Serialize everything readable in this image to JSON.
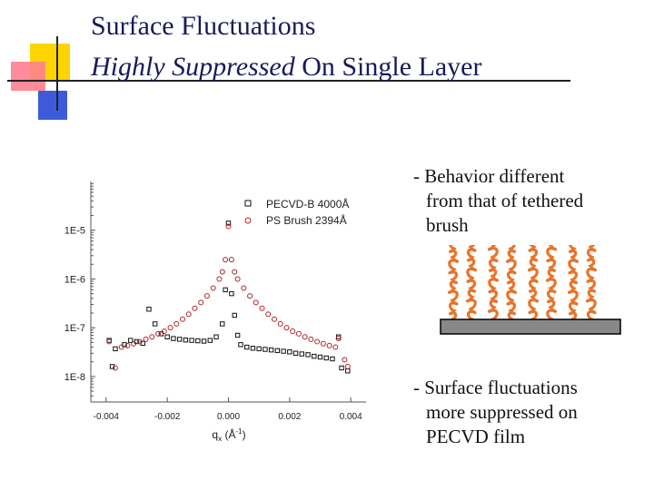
{
  "title": {
    "line1": "Surface Fluctuations",
    "line2_emphasis": "Highly Suppressed",
    "line2_rest": " On Single Layer"
  },
  "bullets": {
    "b1": [
      "- Behavior different",
      "from that of tethered",
      "brush"
    ],
    "b2": [
      "- Surface fluctuations",
      "more suppressed on",
      "PECVD film"
    ]
  },
  "colors": {
    "title": "#1a1a5c",
    "series_pecvd": "#111111",
    "series_ps": "#b22222",
    "chains": "#e8742a",
    "substrate": "#888888"
  },
  "chart_data": {
    "type": "scatter",
    "xlabel": "qx (Å-1)",
    "xlabel_main": "q",
    "xlabel_sub": "x",
    "xlabel_unit_pre": " (Å",
    "xlabel_unit_sup": "-1",
    "xlabel_unit_post": ")",
    "ylabel": "",
    "yscale": "log",
    "xlim": [
      -0.0045,
      0.0045
    ],
    "ylim": [
      3e-09,
      0.0001
    ],
    "x_ticks": [
      -0.004,
      -0.002,
      0.0,
      0.002,
      0.004
    ],
    "x_tick_labels": [
      "-0.004",
      "-0.002",
      "0.000",
      "0.002",
      "0.004"
    ],
    "y_ticks": [
      1e-08,
      1e-07,
      1e-06,
      1e-05
    ],
    "y_tick_labels": [
      "1E-8",
      "1E-7",
      "1E-6",
      "1E-5"
    ],
    "legend_position": "top-right",
    "series": [
      {
        "name": "PECVD-B 4000Å",
        "marker": "square",
        "points": [
          [
            -0.0039,
            5.5e-08
          ],
          [
            -0.0038,
            1.6e-08
          ],
          [
            -0.0037,
            3.7e-08
          ],
          [
            -0.0034,
            4.5e-08
          ],
          [
            -0.0032,
            5.5e-08
          ],
          [
            -0.003,
            5.2e-08
          ],
          [
            -0.0028,
            4.8e-08
          ],
          [
            -0.0026,
            2.4e-07
          ],
          [
            -0.0024,
            1.2e-07
          ],
          [
            -0.0022,
            7.5e-08
          ],
          [
            -0.002,
            6.5e-08
          ],
          [
            -0.0018,
            6e-08
          ],
          [
            -0.0016,
            5.8e-08
          ],
          [
            -0.0014,
            5.6e-08
          ],
          [
            -0.0012,
            5.5e-08
          ],
          [
            -0.001,
            5.4e-08
          ],
          [
            -0.0008,
            5.3e-08
          ],
          [
            -0.0006,
            5.5e-08
          ],
          [
            -0.0004,
            6.5e-08
          ],
          [
            -0.0002,
            1.2e-07
          ],
          [
            -0.0001,
            6e-07
          ],
          [
            0.0,
            1.4e-05
          ],
          [
            0.0001,
            5e-07
          ],
          [
            0.0002,
            1.8e-07
          ],
          [
            0.0003,
            7e-08
          ],
          [
            0.0004,
            4.5e-08
          ],
          [
            0.0006,
            4e-08
          ],
          [
            0.0008,
            3.8e-08
          ],
          [
            0.001,
            3.7e-08
          ],
          [
            0.0012,
            3.6e-08
          ],
          [
            0.0014,
            3.5e-08
          ],
          [
            0.0016,
            3.4e-08
          ],
          [
            0.0018,
            3.3e-08
          ],
          [
            0.002,
            3.2e-08
          ],
          [
            0.0022,
            3e-08
          ],
          [
            0.0024,
            2.9e-08
          ],
          [
            0.0026,
            2.8e-08
          ],
          [
            0.0028,
            2.6e-08
          ],
          [
            0.003,
            2.5e-08
          ],
          [
            0.0032,
            2.4e-08
          ],
          [
            0.0034,
            2.3e-08
          ],
          [
            0.0036,
            6.5e-08
          ],
          [
            0.0037,
            1.5e-08
          ],
          [
            0.0039,
            1.3e-08
          ]
        ]
      },
      {
        "name": "PS Brush 2394Å",
        "marker": "circle",
        "points": [
          [
            -0.0039,
            5.2e-08
          ],
          [
            -0.0037,
            1.5e-08
          ],
          [
            -0.0035,
            4e-08
          ],
          [
            -0.0033,
            4.3e-08
          ],
          [
            -0.0031,
            4.7e-08
          ],
          [
            -0.0029,
            5.2e-08
          ],
          [
            -0.0027,
            5.8e-08
          ],
          [
            -0.0025,
            6.5e-08
          ],
          [
            -0.0023,
            7.5e-08
          ],
          [
            -0.0021,
            8.5e-08
          ],
          [
            -0.0019,
            1e-07
          ],
          [
            -0.0017,
            1.2e-07
          ],
          [
            -0.0015,
            1.5e-07
          ],
          [
            -0.0013,
            1.9e-07
          ],
          [
            -0.0011,
            2.5e-07
          ],
          [
            -0.0009,
            3.3e-07
          ],
          [
            -0.0007,
            4.5e-07
          ],
          [
            -0.0005,
            6.5e-07
          ],
          [
            -0.0003,
            1e-06
          ],
          [
            -0.0002,
            1.4e-06
          ],
          [
            -0.0001,
            2.5e-06
          ],
          [
            0.0,
            1.2e-05
          ],
          [
            0.0001,
            2.5e-06
          ],
          [
            0.0002,
            1.4e-06
          ],
          [
            0.0003,
            1e-06
          ],
          [
            0.0005,
            6.5e-07
          ],
          [
            0.0007,
            4.5e-07
          ],
          [
            0.0009,
            3.3e-07
          ],
          [
            0.0011,
            2.5e-07
          ],
          [
            0.0013,
            1.9e-07
          ],
          [
            0.0015,
            1.5e-07
          ],
          [
            0.0017,
            1.2e-07
          ],
          [
            0.0019,
            1e-07
          ],
          [
            0.0021,
            8.5e-08
          ],
          [
            0.0023,
            7.5e-08
          ],
          [
            0.0025,
            6.5e-08
          ],
          [
            0.0027,
            5.8e-08
          ],
          [
            0.0029,
            5.2e-08
          ],
          [
            0.0031,
            4.7e-08
          ],
          [
            0.0033,
            4.3e-08
          ],
          [
            0.0035,
            4e-08
          ],
          [
            0.0036,
            6e-08
          ],
          [
            0.0038,
            2.2e-08
          ],
          [
            0.0039,
            1.6e-08
          ]
        ]
      }
    ]
  }
}
